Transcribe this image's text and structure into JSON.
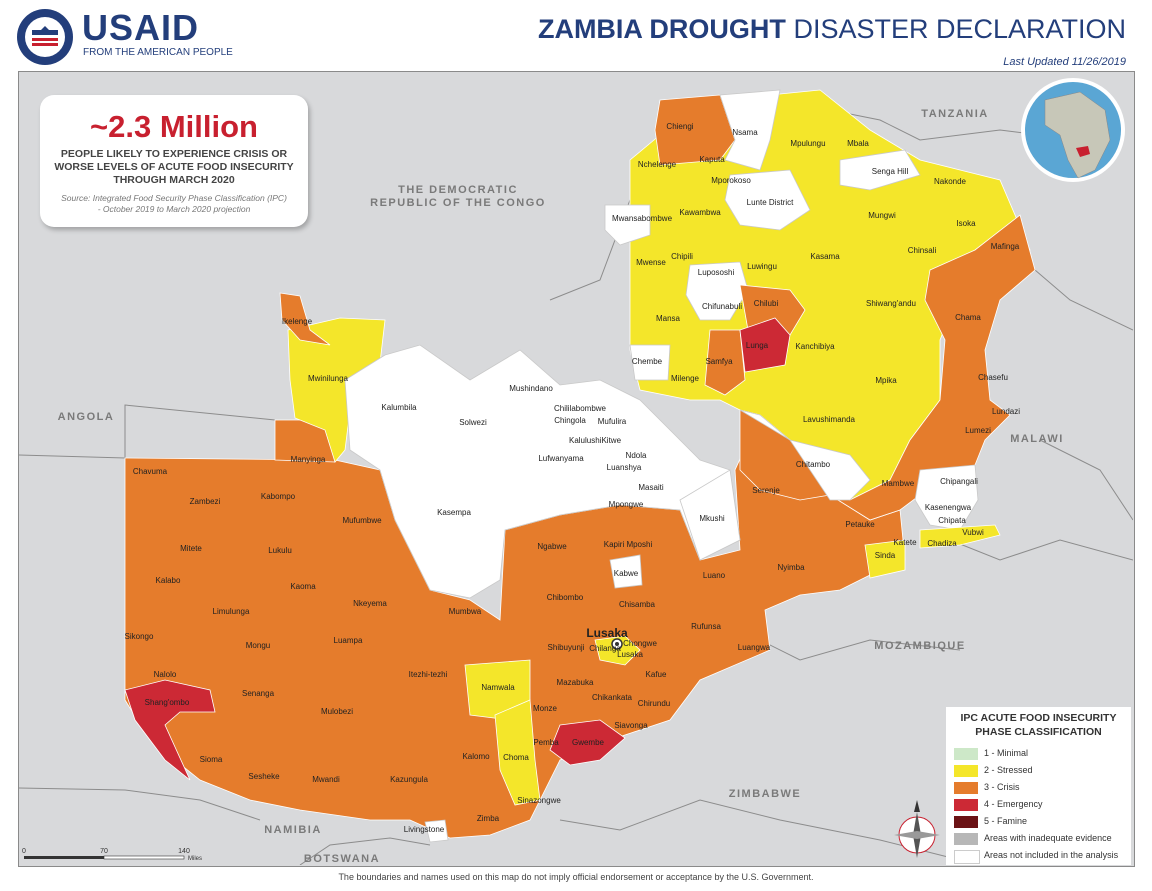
{
  "header": {
    "logo": "USAID",
    "logo_tagline": "FROM THE AMERICAN PEOPLE",
    "seal_text": "UNITED STATES AGENCY INTERNATIONAL DEVELOPMENT",
    "title_bold": "ZAMBIA DROUGHT",
    "title_rest": " DISASTER DECLARATION",
    "last_updated": "Last Updated 11/26/2019"
  },
  "callout": {
    "headline": "~2.3 Million",
    "line1": "PEOPLE LIKELY TO EXPERIENCE CRISIS OR",
    "line2": "WORSE LEVELS OF ACUTE FOOD INSECURITY",
    "line3": "THROUGH MARCH 2020",
    "source1": "Source:  Integrated Food Security Phase Classification (IPC)",
    "source2": "- October 2019 to March 2020 projection"
  },
  "countries": {
    "drc_1": "THE DEMOCRATIC",
    "drc_2": "REPUBLIC OF THE CONGO",
    "tanzania": "TANZANIA",
    "angola": "ANGOLA",
    "malawi": "MALAWI",
    "mozambique": "MOZAMBIQUE",
    "zimbabwe": "ZIMBABWE",
    "namibia": "NAMIBIA",
    "botswana": "BOTSWANA"
  },
  "capital": "Lusaka",
  "districts": {
    "chiengi": "Chiengi",
    "nsama": "Nsama",
    "mpulungu": "Mpulungu",
    "mbala": "Mbala",
    "nchelenge": "Nchelenge",
    "kaputa": "Kaputa",
    "mporokoso": "Mporokoso",
    "senga_hill": "Senga Hill",
    "nakonde": "Nakonde",
    "mwansabombwe": "Mwansabombwe",
    "kawambwa": "Kawambwa",
    "lunte": "Lunte District",
    "mungwi": "Mungwi",
    "isoka": "Isoka",
    "mafinga": "Mafinga",
    "mwense": "Mwense",
    "chipili": "Chipili",
    "lupososhi": "Lupososhi",
    "luwingu": "Luwingu",
    "kasama": "Kasama",
    "chinsali": "Chinsali",
    "chifunabuli": "Chifunabuli",
    "chilubi": "Chilubi",
    "shiwangandu": "Shiwang'andu",
    "ikelenge": "Ikelenge",
    "mansa": "Mansa",
    "chama": "Chama",
    "lunga": "Lunga",
    "kanchibiya": "Kanchibiya",
    "chembe": "Chembe",
    "samfya": "Samfya",
    "mwinilunga": "Mwinilunga",
    "milenge": "Milenge",
    "mpika": "Mpika",
    "chasefu": "Chasefu",
    "mushindano": "Mushindano",
    "lundazi": "Lundazi",
    "chililabombwe": "Chililabombwe",
    "kalumbila": "Kalumbila",
    "chingola": "Chingola",
    "mufulira": "Mufulira",
    "lavushimanda": "Lavushimanda",
    "solwezi": "Solwezi",
    "kalulushi": "KalulushiKitwe",
    "lumezi": "Lumezi",
    "manyinga": "Manyinga",
    "ndola": "Ndola",
    "lufwanyama": "Lufwanyama",
    "luanshya": "Luanshya",
    "chitambo": "Chitambo",
    "chavuma": "Chavuma",
    "masaiti": "Masaiti",
    "serenje": "Serenje",
    "mambwe": "Mambwe",
    "chipangali": "Chipangali",
    "zambezi": "Zambezi",
    "kabompo": "Kabompo",
    "mpongwe": "Mpongwe",
    "mufumbwe": "Mufumbwe",
    "kasempa": "Kasempa",
    "mkushi": "Mkushi",
    "kasenengwa": "Kasenengwa",
    "petauke": "Petauke",
    "chipata": "Chipata",
    "vubwi": "Vubwi",
    "mitete": "Mitete",
    "ngabwe": "Ngabwe",
    "kapiri": "Kapiri Mposhi",
    "katete": "Katete",
    "chadiza": "Chadiza",
    "lukulu": "Lukulu",
    "sinda": "Sinda",
    "kabwe": "Kabwe",
    "nyimba": "Nyimba",
    "luano": "Luano",
    "kalabo": "Kalabo",
    "kaoma": "Kaoma",
    "chibombo": "Chibombo",
    "nkeyema": "Nkeyema",
    "chisamba": "Chisamba",
    "limulunga": "Limulunga",
    "mumbwa": "Mumbwa",
    "sikongo": "Sikongo",
    "mongu": "Mongu",
    "luampa": "Luampa",
    "rufunsa": "Rufunsa",
    "chongwe": "Chongwe",
    "shibuyunji": "Shibuyunji",
    "chilanga": "Chilanga",
    "lusaka_d": "Lusaka",
    "luangwa": "Luangwa",
    "itezhi": "Itezhi-tezhi",
    "nalolo": "Nalolo",
    "namwala": "Namwala",
    "kafue": "Kafue",
    "mazabuka": "Mazabuka",
    "senanga": "Senanga",
    "shangombo": "Shang'ombo",
    "mulobezi": "Mulobezi",
    "chikankata": "Chikankata",
    "chirundu": "Chirundu",
    "monze": "Monze",
    "siavonga": "Siavonga",
    "gwembe": "Gwembe",
    "pemba": "Pemba",
    "kalomo": "Kalomo",
    "sioma": "Sioma",
    "choma": "Choma",
    "sesheke": "Sesheke",
    "mwandi": "Mwandi",
    "kazungula": "Kazungula",
    "sinazongwe": "Sinazongwe",
    "zimba": "Zimba",
    "livingstone": "Livingstone"
  },
  "legend": {
    "title1": "IPC ACUTE FOOD INSECURITY",
    "title2": "PHASE CLASSIFICATION",
    "items": [
      {
        "label": "1 - Minimal",
        "color": "#cde8c8"
      },
      {
        "label": "2 - Stressed",
        "color": "#f4e62a"
      },
      {
        "label": "3 - Crisis",
        "color": "#e57c2c"
      },
      {
        "label": "4 - Emergency",
        "color": "#cc2935"
      },
      {
        "label": "5 - Famine",
        "color": "#6b1215"
      },
      {
        "label": "Areas with inadequate evidence",
        "color": "#b7b7b7"
      },
      {
        "label": "Areas not included in the analysis",
        "color": "#ffffff"
      }
    ]
  },
  "scale": {
    "t0": "0",
    "t1": "70",
    "t2": "140",
    "unit": "Miles"
  },
  "disclaimer": "The boundaries and names used on this map do not imply official endorsement or acceptance by the U.S. Government."
}
